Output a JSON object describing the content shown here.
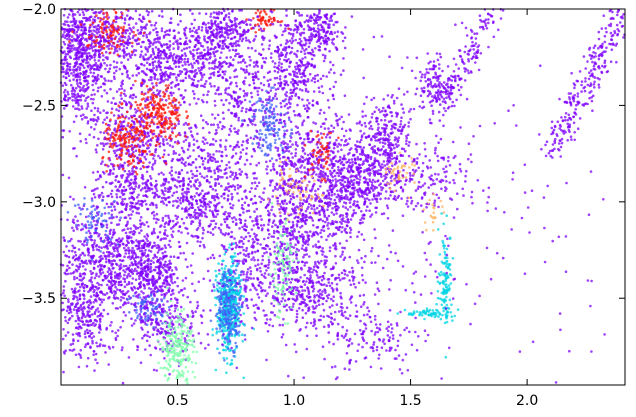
{
  "chart_data": {
    "type": "scatter",
    "title": "",
    "xlabel": "",
    "ylabel": "",
    "xlim": [
      0.0,
      2.42
    ],
    "ylim": [
      -3.95,
      -2.0
    ],
    "grid": false,
    "legend": "none",
    "x_ticks": [
      {
        "value": 0.5,
        "label": "0.5"
      },
      {
        "value": 1.0,
        "label": "1.0"
      },
      {
        "value": 1.5,
        "label": "1.5"
      },
      {
        "value": 2.0,
        "label": "2.0"
      }
    ],
    "y_ticks": [
      {
        "value": -2.0,
        "label": "−2.0"
      },
      {
        "value": -2.5,
        "label": "−2.5"
      },
      {
        "value": -3.0,
        "label": "−3.0"
      },
      {
        "value": -3.5,
        "label": "−3.5"
      }
    ],
    "point_colors": {
      "violet": "#7f00ff",
      "blue": "#3f61fa",
      "cyan": "#00d4e6",
      "mint": "#7fffaa",
      "orange": "#ffb360",
      "red": "#ff1a0d"
    },
    "clusters": [
      {
        "x": 0.08,
        "y": -2.25,
        "sx": 0.07,
        "sy": 0.18,
        "n": 700,
        "color": "violet"
      },
      {
        "x": 0.25,
        "y": -2.15,
        "sx": 0.1,
        "sy": 0.1,
        "n": 300,
        "color": "violet"
      },
      {
        "x": 0.45,
        "y": -2.3,
        "sx": 0.07,
        "sy": 0.12,
        "n": 300,
        "color": "violet"
      },
      {
        "x": 0.6,
        "y": -2.25,
        "sx": 0.08,
        "sy": 0.1,
        "n": 250,
        "color": "violet"
      },
      {
        "x": 0.3,
        "y": -2.65,
        "sx": 0.08,
        "sy": 0.15,
        "n": 350,
        "color": "violet"
      },
      {
        "x": 0.55,
        "y": -2.8,
        "sx": 0.1,
        "sy": 0.12,
        "n": 250,
        "color": "violet"
      },
      {
        "x": 0.2,
        "y": -3.3,
        "sx": 0.1,
        "sy": 0.15,
        "n": 650,
        "color": "violet"
      },
      {
        "x": 0.1,
        "y": -3.6,
        "sx": 0.06,
        "sy": 0.12,
        "n": 250,
        "color": "violet"
      },
      {
        "x": 0.4,
        "y": -3.35,
        "sx": 0.06,
        "sy": 0.1,
        "n": 300,
        "color": "violet"
      },
      {
        "x": 0.6,
        "y": -3.05,
        "sx": 0.1,
        "sy": 0.1,
        "n": 300,
        "color": "violet"
      },
      {
        "x": 0.45,
        "y": -3.6,
        "sx": 0.08,
        "sy": 0.1,
        "n": 250,
        "color": "violet"
      },
      {
        "x": 0.75,
        "y": -2.55,
        "sx": 0.07,
        "sy": 0.2,
        "n": 250,
        "color": "violet"
      },
      {
        "x": 1.0,
        "y": -2.3,
        "sx": 0.1,
        "sy": 0.15,
        "n": 450,
        "color": "violet"
      },
      {
        "x": 1.05,
        "y": -2.8,
        "sx": 0.1,
        "sy": 0.12,
        "n": 350,
        "color": "violet"
      },
      {
        "x": 0.9,
        "y": -2.6,
        "sx": 0.04,
        "sy": 0.08,
        "n": 120,
        "color": "blue"
      },
      {
        "x": 1.0,
        "y": -3.1,
        "sx": 0.08,
        "sy": 0.12,
        "n": 350,
        "color": "violet"
      },
      {
        "x": 1.05,
        "y": -3.45,
        "sx": 0.12,
        "sy": 0.12,
        "n": 450,
        "color": "violet"
      },
      {
        "x": 0.8,
        "y": -3.3,
        "sx": 0.06,
        "sy": 0.15,
        "n": 200,
        "color": "violet"
      },
      {
        "x": 1.3,
        "y": -2.85,
        "sx": 0.08,
        "sy": 0.1,
        "n": 400,
        "color": "violet"
      },
      {
        "x": 1.4,
        "y": -2.65,
        "sx": 0.06,
        "sy": 0.1,
        "n": 200,
        "color": "violet"
      },
      {
        "x": 1.55,
        "y": -2.9,
        "sx": 0.1,
        "sy": 0.1,
        "n": 150,
        "color": "violet"
      },
      {
        "x": 1.6,
        "y": -2.4,
        "sx": 0.03,
        "sy": 0.08,
        "n": 120,
        "color": "violet"
      },
      {
        "x": 1.35,
        "y": -3.7,
        "sx": 0.1,
        "sy": 0.1,
        "n": 120,
        "color": "violet"
      },
      {
        "x": 0.7,
        "y": -2.1,
        "sx": 0.06,
        "sy": 0.06,
        "n": 200,
        "color": "violet"
      },
      {
        "x": 0.3,
        "y": -2.95,
        "sx": 0.08,
        "sy": 0.08,
        "n": 200,
        "color": "violet"
      },
      {
        "x": 1.1,
        "y": -2.1,
        "sx": 0.05,
        "sy": 0.06,
        "n": 150,
        "color": "violet"
      },
      {
        "x": 1.2,
        "y": -3.0,
        "sx": 0.06,
        "sy": 0.12,
        "n": 200,
        "color": "violet"
      },
      {
        "x": 0.42,
        "y": -2.55,
        "sx": 0.05,
        "sy": 0.08,
        "n": 220,
        "color": "red"
      },
      {
        "x": 0.28,
        "y": -2.7,
        "sx": 0.05,
        "sy": 0.08,
        "n": 150,
        "color": "red"
      },
      {
        "x": 0.2,
        "y": -2.1,
        "sx": 0.06,
        "sy": 0.06,
        "n": 100,
        "color": "red"
      },
      {
        "x": 0.88,
        "y": -2.05,
        "sx": 0.03,
        "sy": 0.03,
        "n": 60,
        "color": "red"
      },
      {
        "x": 1.12,
        "y": -2.75,
        "sx": 0.03,
        "sy": 0.06,
        "n": 50,
        "color": "red"
      },
      {
        "x": 0.72,
        "y": -3.55,
        "sx": 0.025,
        "sy": 0.12,
        "n": 450,
        "color": "cyan"
      },
      {
        "x": 0.72,
        "y": -3.55,
        "sx": 0.03,
        "sy": 0.1,
        "n": 200,
        "color": "blue"
      },
      {
        "x": 0.5,
        "y": -3.75,
        "sx": 0.035,
        "sy": 0.1,
        "n": 220,
        "color": "mint"
      },
      {
        "x": 0.95,
        "y": -3.35,
        "sx": 0.03,
        "sy": 0.12,
        "n": 100,
        "color": "mint"
      },
      {
        "x": 1.0,
        "y": -2.95,
        "sx": 0.06,
        "sy": 0.06,
        "n": 60,
        "color": "orange"
      },
      {
        "x": 1.45,
        "y": -2.85,
        "sx": 0.04,
        "sy": 0.05,
        "n": 40,
        "color": "orange"
      },
      {
        "x": 1.6,
        "y": -3.05,
        "sx": 0.02,
        "sy": 0.04,
        "n": 20,
        "color": "orange"
      },
      {
        "x": 0.15,
        "y": -3.1,
        "sx": 0.05,
        "sy": 0.06,
        "n": 60,
        "color": "blue"
      },
      {
        "x": 0.38,
        "y": -3.55,
        "sx": 0.05,
        "sy": 0.05,
        "n": 60,
        "color": "blue"
      },
      {
        "x": 1.65,
        "y": -3.4,
        "sx": 0.015,
        "sy": 0.12,
        "n": 120,
        "color": "cyan"
      },
      {
        "x": 1.58,
        "y": -3.58,
        "sx": 0.05,
        "sy": 0.012,
        "n": 60,
        "color": "cyan"
      },
      {
        "x": 1.5,
        "y": -3.3,
        "sx": 0.5,
        "sy": 0.4,
        "n": 150,
        "color": "violet"
      },
      {
        "x": 0.9,
        "y": -3.0,
        "sx": 0.6,
        "sy": 0.5,
        "n": 300,
        "color": "violet"
      }
    ],
    "diagonal_streaks": [
      {
        "x1": 2.1,
        "y1": -2.75,
        "x2": 2.42,
        "y2": -2.0,
        "n": 260,
        "spread": 0.03,
        "color": "violet"
      },
      {
        "x1": 1.65,
        "y1": -2.5,
        "x2": 1.85,
        "y2": -2.0,
        "n": 150,
        "spread": 0.025,
        "color": "violet"
      }
    ]
  }
}
